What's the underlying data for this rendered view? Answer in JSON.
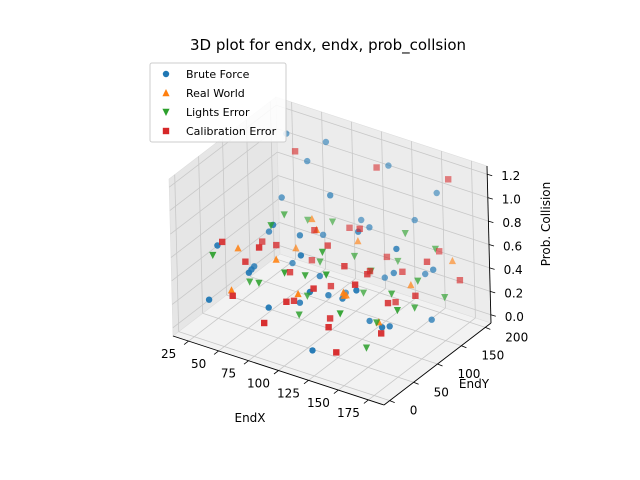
{
  "chart_data": {
    "type": "scatter",
    "title": "3D plot for endx, endx, prob_collsion",
    "xlabel": "EndX",
    "ylabel": "EndY",
    "zlabel": "Prob. Collision",
    "x_ticks": [
      25,
      50,
      75,
      100,
      125,
      150,
      175
    ],
    "y_ticks": [
      0,
      50,
      100,
      150,
      200
    ],
    "z_ticks": [
      0.0,
      0.2,
      0.4,
      0.6,
      0.8,
      1.0,
      1.2
    ],
    "x_tick_labels": [
      "25",
      "50",
      "75",
      "100",
      "125",
      "150",
      "175"
    ],
    "y_tick_labels": [
      "0",
      "50",
      "100",
      "150",
      "200"
    ],
    "z_tick_labels": [
      "0.0",
      "0.2",
      "0.4",
      "0.6",
      "0.8",
      "1.0",
      "1.2"
    ],
    "xlim": [
      12,
      188
    ],
    "ylim": [
      -12,
      212
    ],
    "zlim": [
      -0.07,
      1.27
    ],
    "grid": true,
    "legend_position": "top-left",
    "series": [
      {
        "name": "Brute Force",
        "marker": "circle",
        "color": "#1f77b4",
        "points": [
          [
            30,
            20,
            0.2
          ],
          [
            30,
            40,
            0.6
          ],
          [
            40,
            150,
            0.7
          ],
          [
            40,
            90,
            0.3
          ],
          [
            45,
            110,
            0.55
          ],
          [
            50,
            60,
            0.4
          ],
          [
            50,
            180,
            0.95
          ],
          [
            60,
            30,
            0.5
          ],
          [
            60,
            120,
            0.3
          ],
          [
            65,
            70,
            0.8
          ],
          [
            70,
            160,
            0.45
          ],
          [
            75,
            100,
            0.65
          ],
          [
            80,
            20,
            0.3
          ],
          [
            85,
            140,
            0.9
          ],
          [
            90,
            60,
            0.25
          ],
          [
            90,
            190,
            0.55
          ],
          [
            95,
            90,
            0.4
          ],
          [
            100,
            40,
            0.75
          ],
          [
            100,
            130,
            0.15
          ],
          [
            105,
            170,
            0.6
          ],
          [
            110,
            70,
            0.35
          ],
          [
            115,
            20,
            0.55
          ],
          [
            120,
            110,
            0.8
          ],
          [
            125,
            150,
            0.3
          ],
          [
            130,
            50,
            0.45
          ],
          [
            135,
            190,
            0.7
          ],
          [
            140,
            80,
            0.2
          ],
          [
            145,
            120,
            0.5
          ],
          [
            150,
            30,
            0.65
          ],
          [
            155,
            160,
            0.4
          ],
          [
            160,
            90,
            0.85
          ],
          [
            165,
            60,
            0.3
          ],
          [
            170,
            140,
            0.55
          ],
          [
            175,
            20,
            0.45
          ],
          [
            180,
            110,
            0.25
          ],
          [
            60,
            195,
            1.1
          ],
          [
            110,
            200,
            1.05
          ],
          [
            35,
            175,
            1.15
          ],
          [
            150,
            200,
            0.95
          ],
          [
            120,
            10,
            0.1
          ]
        ]
      },
      {
        "name": "Real World",
        "marker": "triangle-up",
        "color": "#ff7f0e",
        "points": [
          [
            35,
            70,
            0.5
          ],
          [
            55,
            140,
            0.35
          ],
          [
            75,
            50,
            0.6
          ],
          [
            95,
            170,
            0.45
          ],
          [
            115,
            90,
            0.3
          ],
          [
            135,
            40,
            0.55
          ],
          [
            155,
            130,
            0.4
          ],
          [
            170,
            180,
            0.5
          ],
          [
            45,
            30,
            0.3
          ],
          [
            85,
            110,
            0.7
          ],
          [
            125,
            70,
            0.4
          ],
          [
            160,
            50,
            0.35
          ],
          [
            65,
            150,
            0.6
          ],
          [
            105,
            20,
            0.5
          ]
        ]
      },
      {
        "name": "Lights Error",
        "marker": "triangle-down",
        "color": "#2ca02c",
        "points": [
          [
            30,
            30,
            0.55
          ],
          [
            40,
            80,
            0.2
          ],
          [
            50,
            130,
            0.65
          ],
          [
            60,
            50,
            0.35
          ],
          [
            70,
            180,
            0.5
          ],
          [
            80,
            100,
            0.15
          ],
          [
            90,
            30,
            0.6
          ],
          [
            100,
            150,
            0.4
          ],
          [
            110,
            60,
            0.75
          ],
          [
            120,
            190,
            0.3
          ],
          [
            130,
            110,
            0.5
          ],
          [
            140,
            20,
            0.45
          ],
          [
            150,
            70,
            0.25
          ],
          [
            160,
            170,
            0.6
          ],
          [
            170,
            100,
            0.35
          ],
          [
            180,
            40,
            0.55
          ],
          [
            55,
            90,
            0.7
          ],
          [
            75,
            140,
            0.3
          ],
          [
            95,
            60,
            0.5
          ],
          [
            115,
            130,
            0.2
          ],
          [
            135,
            170,
            0.65
          ],
          [
            155,
            90,
            0.45
          ],
          [
            175,
            150,
            0.3
          ],
          [
            45,
            190,
            0.4
          ],
          [
            125,
            30,
            0.7
          ],
          [
            165,
            120,
            0.5
          ],
          [
            85,
            70,
            0.1
          ],
          [
            145,
            60,
            0.05
          ]
        ]
      },
      {
        "name": "Calibration Error",
        "marker": "square",
        "color": "#d62728",
        "points": [
          [
            30,
            50,
            0.6
          ],
          [
            35,
            120,
            0.4
          ],
          [
            40,
            180,
            1.0
          ],
          [
            50,
            20,
            0.3
          ],
          [
            55,
            100,
            0.5
          ],
          [
            60,
            160,
            0.2
          ],
          [
            65,
            40,
            0.7
          ],
          [
            70,
            90,
            0.35
          ],
          [
            75,
            130,
            0.6
          ],
          [
            80,
            190,
            0.45
          ],
          [
            85,
            60,
            0.25
          ],
          [
            90,
            120,
            0.55
          ],
          [
            95,
            20,
            0.4
          ],
          [
            100,
            100,
            0.3
          ],
          [
            105,
            150,
            0.65
          ],
          [
            110,
            40,
            0.5
          ],
          [
            115,
            180,
            0.35
          ],
          [
            120,
            80,
            0.6
          ],
          [
            125,
            120,
            0.45
          ],
          [
            130,
            20,
            0.3
          ],
          [
            135,
            90,
            0.55
          ],
          [
            140,
            150,
            0.4
          ],
          [
            145,
            40,
            0.65
          ],
          [
            150,
            110,
            0.3
          ],
          [
            155,
            190,
            0.5
          ],
          [
            160,
            70,
            0.45
          ],
          [
            165,
            140,
            0.6
          ],
          [
            170,
            30,
            0.35
          ],
          [
            175,
            90,
            0.5
          ],
          [
            180,
            170,
            0.4
          ],
          [
            45,
            60,
            0.45
          ],
          [
            115,
            60,
            0.2
          ],
          [
            100,
            200,
            1.0
          ],
          [
            160,
            200,
            1.1
          ],
          [
            140,
            10,
            0.15
          ],
          [
            80,
            10,
            0.2
          ]
        ]
      }
    ]
  }
}
